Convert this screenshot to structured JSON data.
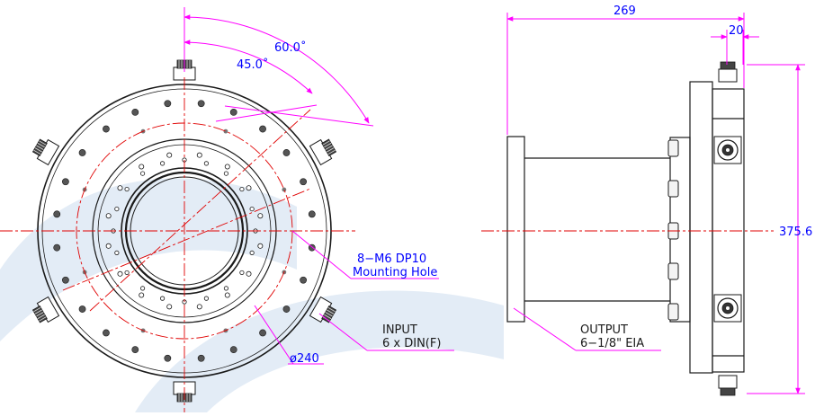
{
  "colors": {
    "line": "#1a1a1a",
    "dimension": "#ff00ff",
    "center_line": "#e00000",
    "label": "#0000ff",
    "watermark": "#e3ecf6"
  },
  "front_view": {
    "angle_outer": "60.0˚",
    "angle_inner": "45.0˚",
    "mounting_spec": "8−M6 DP10",
    "mounting_label": "Mounting Hole",
    "input_title": "INPUT",
    "input_spec": "6 x DIN(F)",
    "circle_diameter": "ø240"
  },
  "side_view": {
    "overall_length": "269",
    "connector_offset": "20",
    "overall_height": "375.6",
    "output_title": "OUTPUT",
    "output_spec": "6−1/8\" EIA"
  }
}
